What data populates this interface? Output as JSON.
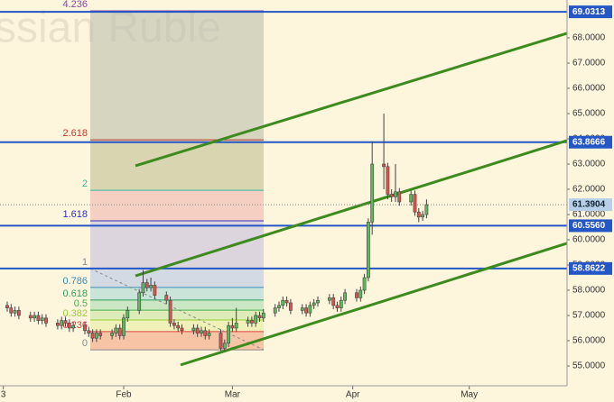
{
  "chart_data": {
    "type": "candlestick",
    "watermark": "ssian Ruble",
    "x": [
      -30,
      -29,
      -28,
      -27,
      -24,
      -23,
      -22,
      -21,
      -20,
      -17,
      -16,
      -15,
      -14,
      -13,
      -10,
      -9,
      -8,
      -7,
      -6,
      -3,
      -2,
      -1,
      0,
      1,
      4,
      5,
      6,
      7,
      8,
      11,
      12,
      13,
      14,
      15,
      18,
      19,
      20,
      21,
      22,
      25,
      26,
      27,
      28,
      29,
      32,
      33,
      34,
      35,
      36,
      39,
      40,
      41,
      42,
      43,
      46,
      47,
      48,
      49,
      50,
      53,
      54,
      55,
      56,
      57,
      60,
      61,
      62,
      63,
      64,
      67,
      68,
      69,
      70,
      71,
      74,
      75,
      76,
      77,
      78
    ],
    "open": [
      57.4,
      57.3,
      57.1,
      57.2,
      57.0,
      56.9,
      57.0,
      56.8,
      56.9,
      56.7,
      56.6,
      56.8,
      56.7,
      56.5,
      56.6,
      56.4,
      56.3,
      56.1,
      56.3,
      56.2,
      56.3,
      56.5,
      56.2,
      56.9,
      57.2,
      57.9,
      58.3,
      58.1,
      58.2,
      57.8,
      57.6,
      56.7,
      56.6,
      56.5,
      56.4,
      56.5,
      56.3,
      56.4,
      56.2,
      56.3,
      55.7,
      55.9,
      56.6,
      56.5,
      56.7,
      56.8,
      56.7,
      57.0,
      56.9,
      57.1,
      57.3,
      57.4,
      57.6,
      57.5,
      57.2,
      57.3,
      57.1,
      57.4,
      57.5,
      57.6,
      57.7,
      57.4,
      57.3,
      57.6,
      57.9,
      57.7,
      58.0,
      58.5,
      60.7,
      63.0,
      62.9,
      61.8,
      61.7,
      61.9,
      61.5,
      61.8,
      61.1,
      60.9,
      61.0
    ],
    "close": [
      57.3,
      57.1,
      57.2,
      57.0,
      56.9,
      57.0,
      56.8,
      56.9,
      56.7,
      56.6,
      56.8,
      56.7,
      56.5,
      56.6,
      56.4,
      56.3,
      56.1,
      56.3,
      56.2,
      56.3,
      56.5,
      56.2,
      56.9,
      57.2,
      57.9,
      58.3,
      58.1,
      58.2,
      57.8,
      57.6,
      56.7,
      56.6,
      56.5,
      56.4,
      56.5,
      56.3,
      56.4,
      56.2,
      56.3,
      55.7,
      55.9,
      56.6,
      56.5,
      56.7,
      56.8,
      56.7,
      57.0,
      56.9,
      57.1,
      57.3,
      57.4,
      57.6,
      57.5,
      57.2,
      57.3,
      57.1,
      57.4,
      57.5,
      57.6,
      57.7,
      57.4,
      57.3,
      57.6,
      57.9,
      57.7,
      58.0,
      58.5,
      60.7,
      63.0,
      62.9,
      61.8,
      61.7,
      61.9,
      61.5,
      61.8,
      61.1,
      60.9,
      61.0,
      61.39
    ],
    "high": [
      57.55,
      57.45,
      57.35,
      57.35,
      57.15,
      57.15,
      57.15,
      57.05,
      57.05,
      56.85,
      56.95,
      56.95,
      56.85,
      56.75,
      56.75,
      56.55,
      56.45,
      56.45,
      56.45,
      56.45,
      56.65,
      56.65,
      57.05,
      57.35,
      58.05,
      58.8,
      58.45,
      58.5,
      58.35,
      57.95,
      57.75,
      56.85,
      56.75,
      56.65,
      56.65,
      56.65,
      56.55,
      56.55,
      56.45,
      56.45,
      56.05,
      56.75,
      56.9,
      57.3,
      56.95,
      56.95,
      57.15,
      57.15,
      57.25,
      57.45,
      57.55,
      57.75,
      57.75,
      57.65,
      57.45,
      57.45,
      57.55,
      57.65,
      57.75,
      57.85,
      57.85,
      57.55,
      57.75,
      58.05,
      58.05,
      58.15,
      58.65,
      60.85,
      63.9,
      65.0,
      63.05,
      62.0,
      63.0,
      62.05,
      61.95,
      61.95,
      61.25,
      61.15,
      61.6
    ],
    "low": [
      57.15,
      56.95,
      56.95,
      56.85,
      56.75,
      56.75,
      56.65,
      56.65,
      56.55,
      56.45,
      56.45,
      56.55,
      56.35,
      56.35,
      56.25,
      56.15,
      55.95,
      55.95,
      56.05,
      56.05,
      56.15,
      56.05,
      56.05,
      56.75,
      57.05,
      57.75,
      57.95,
      57.95,
      57.65,
      57.45,
      56.55,
      56.45,
      56.35,
      56.25,
      56.25,
      56.15,
      56.15,
      56.05,
      56.05,
      55.6,
      55.6,
      55.75,
      56.35,
      56.35,
      56.55,
      56.55,
      56.55,
      56.75,
      56.75,
      56.95,
      57.15,
      57.25,
      57.35,
      57.05,
      57.05,
      56.95,
      56.95,
      57.25,
      57.35,
      57.45,
      57.25,
      57.15,
      57.15,
      57.45,
      57.55,
      57.55,
      57.85,
      58.35,
      60.2,
      62.0,
      61.6,
      61.5,
      61.5,
      61.35,
      61.35,
      60.95,
      60.7,
      60.75,
      60.85
    ],
    "up_color": "#5cb85c",
    "down_color": "#d9534f",
    "xlim": [
      -31.86,
      114.19
    ],
    "xticks": [
      {
        "value": -31,
        "label": "3"
      },
      {
        "value": 0,
        "label": "Feb"
      },
      {
        "value": 28,
        "label": "Mar"
      },
      {
        "value": 59,
        "label": "Apr"
      },
      {
        "value": 89,
        "label": "May"
      }
    ],
    "ylim": [
      54.2143,
      69.5
    ],
    "yticks": [
      {
        "value": 55,
        "label": "55.0000"
      },
      {
        "value": 56,
        "label": "56.0000"
      },
      {
        "value": 57,
        "label": "57.0000"
      },
      {
        "value": 58,
        "label": "58.0000"
      },
      {
        "value": 59,
        "label": "59.0000"
      },
      {
        "value": 60,
        "label": "60.0000"
      },
      {
        "value": 61,
        "label": "61.0000"
      },
      {
        "value": 62,
        "label": "62.0000"
      },
      {
        "value": 63,
        "label": "63.0000"
      },
      {
        "value": 64,
        "label": "64.0000"
      },
      {
        "value": 65,
        "label": "65.0000"
      },
      {
        "value": 66,
        "label": "66.0000"
      },
      {
        "value": 67,
        "label": "67.0000"
      },
      {
        "value": 68,
        "label": "68.0000"
      }
    ],
    "hlines": [
      {
        "value": 69.0313,
        "label": "69.0313"
      },
      {
        "value": 63.8666,
        "label": "63.8666"
      },
      {
        "value": 60.556,
        "label": "60.5560"
      },
      {
        "value": 58.8622,
        "label": "58.8622"
      }
    ],
    "hline_color": "#2457c5",
    "last_price": {
      "value": 61.3904,
      "label": "61.3904"
    },
    "trendline_color": "#3d8b1e",
    "trendlines": [
      {
        "x": [
          3.02,
          114.19
        ],
        "y": [
          62.93,
          68.18
        ]
      },
      {
        "x": [
          3.02,
          114.19
        ],
        "y": [
          58.57,
          63.93
        ]
      },
      {
        "x": [
          14.65,
          114.19
        ],
        "y": [
          55.04,
          59.86
        ]
      }
    ],
    "fib": {
      "x": [
        -8.6,
        36.05
      ],
      "levels": [
        {
          "level": 0,
          "price": 55.64,
          "color": "#888888",
          "fill": "#f4a582"
        },
        {
          "level": 0.236,
          "price": 56.36,
          "color": "#e04040",
          "fill": "#e6eea0"
        },
        {
          "level": 0.382,
          "price": 56.82,
          "color": "#9acd32",
          "fill": "#c8e6a0"
        },
        {
          "level": 0.5,
          "price": 57.21,
          "color": "#4caf50",
          "fill": "#a8dcb0"
        },
        {
          "level": 0.618,
          "price": 57.61,
          "color": "#2e9e5e",
          "fill": "#a8d8d8"
        },
        {
          "level": 0.786,
          "price": 58.11,
          "color": "#3a8fb7",
          "fill": "#b8c8e8"
        },
        {
          "level": 1,
          "price": 58.86,
          "color": "#888888",
          "fill": "#c8c0e0"
        },
        {
          "level": 1.618,
          "price": 60.75,
          "color": "#3030c0",
          "fill": "#f0b8b0"
        },
        {
          "level": 2,
          "price": 61.96,
          "color": "#36b7a0",
          "fill": "#c2c095"
        },
        {
          "level": 2.618,
          "price": 63.96,
          "color": "#c0392b",
          "fill": "#bdbfae"
        },
        {
          "level": 4.236,
          "price": 69.07,
          "color": "#8e44ad"
        }
      ]
    }
  }
}
